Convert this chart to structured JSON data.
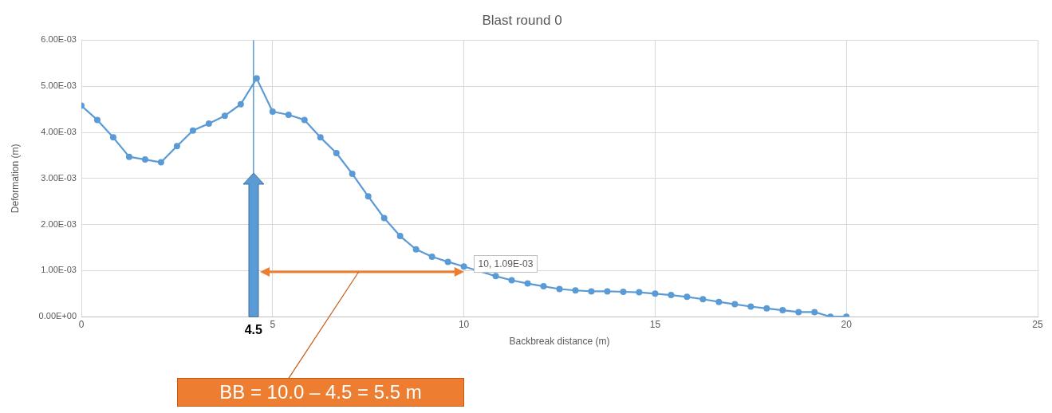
{
  "chart_data": {
    "type": "line",
    "title": "Blast round 0",
    "xlabel": "Backbreak distance (m)",
    "ylabel": "Deformation (m)",
    "x": [
      0,
      0.417,
      0.833,
      1.25,
      1.667,
      2.083,
      2.5,
      2.917,
      3.333,
      3.75,
      4.167,
      4.583,
      5.0,
      5.417,
      5.833,
      6.25,
      6.667,
      7.083,
      7.5,
      7.917,
      8.333,
      8.75,
      9.167,
      9.583,
      10,
      10.417,
      10.833,
      11.25,
      11.667,
      12.083,
      12.5,
      12.917,
      13.333,
      13.75,
      14.167,
      14.583,
      15.0,
      15.417,
      15.833,
      16.25,
      16.667,
      17.083,
      17.5,
      17.917,
      18.333,
      18.75,
      19.167,
      19.583,
      20
    ],
    "series": [
      {
        "color": "#5b9bd5",
        "values": [
          0.00458,
          0.00427,
          0.00389,
          0.00347,
          0.00341,
          0.00335,
          0.0037,
          0.00404,
          0.00419,
          0.00436,
          0.00461,
          0.00517,
          0.00445,
          0.00438,
          0.00427,
          0.00389,
          0.00355,
          0.0031,
          0.00261,
          0.00214,
          0.00175,
          0.00146,
          0.0013,
          0.00119,
          0.00109,
          null,
          0.00088,
          0.00079,
          0.00072,
          0.00066,
          0.0006,
          0.00057,
          0.00055,
          0.00055,
          0.00054,
          0.00053,
          0.0005,
          0.00047,
          0.00043,
          0.00038,
          0.00032,
          0.00027,
          0.00022,
          0.00018,
          0.00014,
          0.0001,
          0.0001,
          0,
          0
        ]
      }
    ],
    "xlim": [
      0,
      25
    ],
    "xticks": [
      0,
      5,
      10,
      15,
      20,
      25
    ],
    "ylim": [
      0,
      0.006
    ],
    "yticks": [
      {
        "value": 0,
        "label": "0.00E+00"
      },
      {
        "value": 0.001,
        "label": "1.00E-03"
      },
      {
        "value": 0.002,
        "label": "2.00E-03"
      },
      {
        "value": 0.003,
        "label": "3.00E-03"
      },
      {
        "value": 0.004,
        "label": "4.00E-03"
      },
      {
        "value": 0.005,
        "label": "5.00E-03"
      },
      {
        "value": 0.006,
        "label": "6.00E-03"
      }
    ],
    "ref_lines": [
      {
        "axis": "x",
        "value": 4.5,
        "label": "4.5",
        "color": "#5b9bd5"
      }
    ],
    "annotations": [
      "BB = 10.0 – 4.5 = 5.5 m",
      {
        "text": "10, 1.09E-03",
        "x": 10,
        "y": 0.00109
      }
    ],
    "grid": true,
    "marker": "circle",
    "line_style": "solid",
    "legend": false
  }
}
